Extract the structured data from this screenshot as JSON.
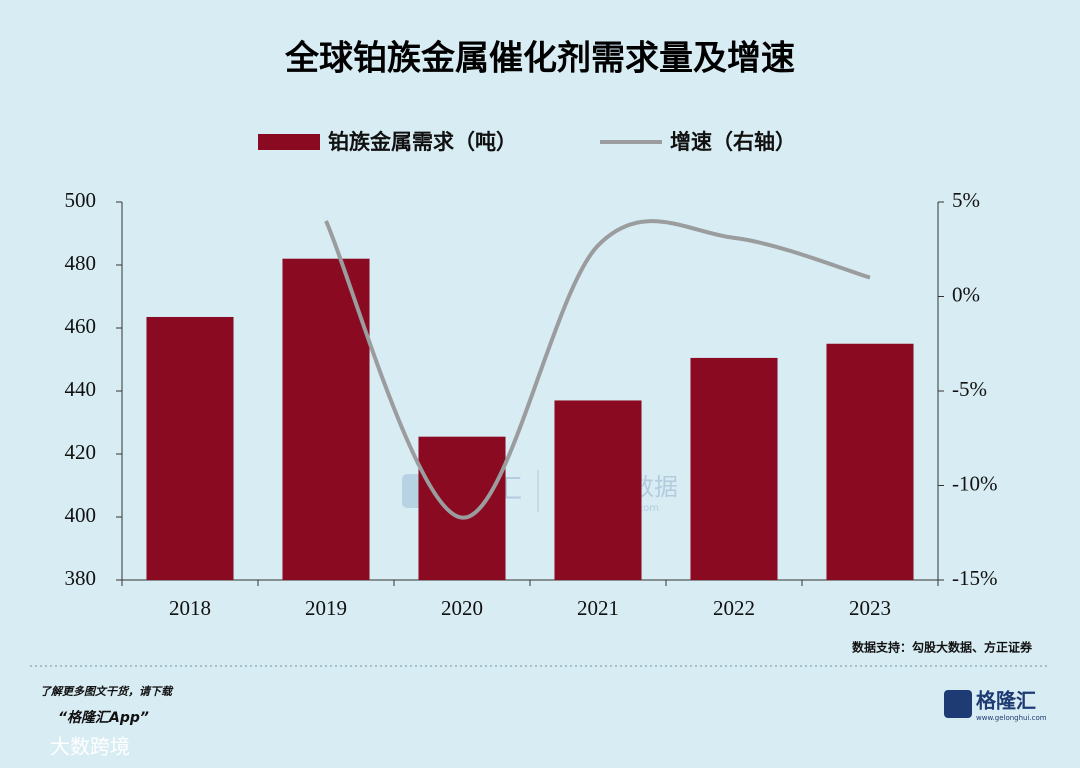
{
  "chart_data": {
    "type": "bar",
    "title": "全球铂族金属催化剂需求量及增速",
    "categories": [
      "2018",
      "2019",
      "2020",
      "2021",
      "2022",
      "2023"
    ],
    "series": [
      {
        "name": "铂族金属需求（吨）",
        "type": "bar",
        "color": "#8a0a22",
        "values": [
          463.5,
          482,
          425.5,
          437,
          450.5,
          455
        ]
      },
      {
        "name": "增速（右轴）",
        "type": "line",
        "axis": "y2",
        "color": "#9a9c9e",
        "values": [
          null,
          4,
          -11.7,
          2.7,
          3.1,
          1
        ]
      }
    ],
    "ylim": [
      380,
      500
    ],
    "yticks": [
      380,
      400,
      420,
      440,
      460,
      480,
      500
    ],
    "y2lim": [
      -15,
      5
    ],
    "y2ticks": [
      {
        "value": -15,
        "label": "-15%"
      },
      {
        "value": -10,
        "label": "-10%"
      },
      {
        "value": -5,
        "label": "-5%"
      },
      {
        "value": 0,
        "label": "0%"
      },
      {
        "value": 5,
        "label": "5%"
      }
    ],
    "source": "数据支持：勾股大数据、方正证券"
  },
  "footer": {
    "prompt": "了解更多图文干货，请下载",
    "app": "“格隆汇App”",
    "logo": "格隆汇",
    "logo_url": "www.gelonghui.com",
    "corner": "大数跨境"
  },
  "watermark": {
    "brand": "格隆汇",
    "brand2": "勾股大数据",
    "url": "www.gogudata.com"
  }
}
